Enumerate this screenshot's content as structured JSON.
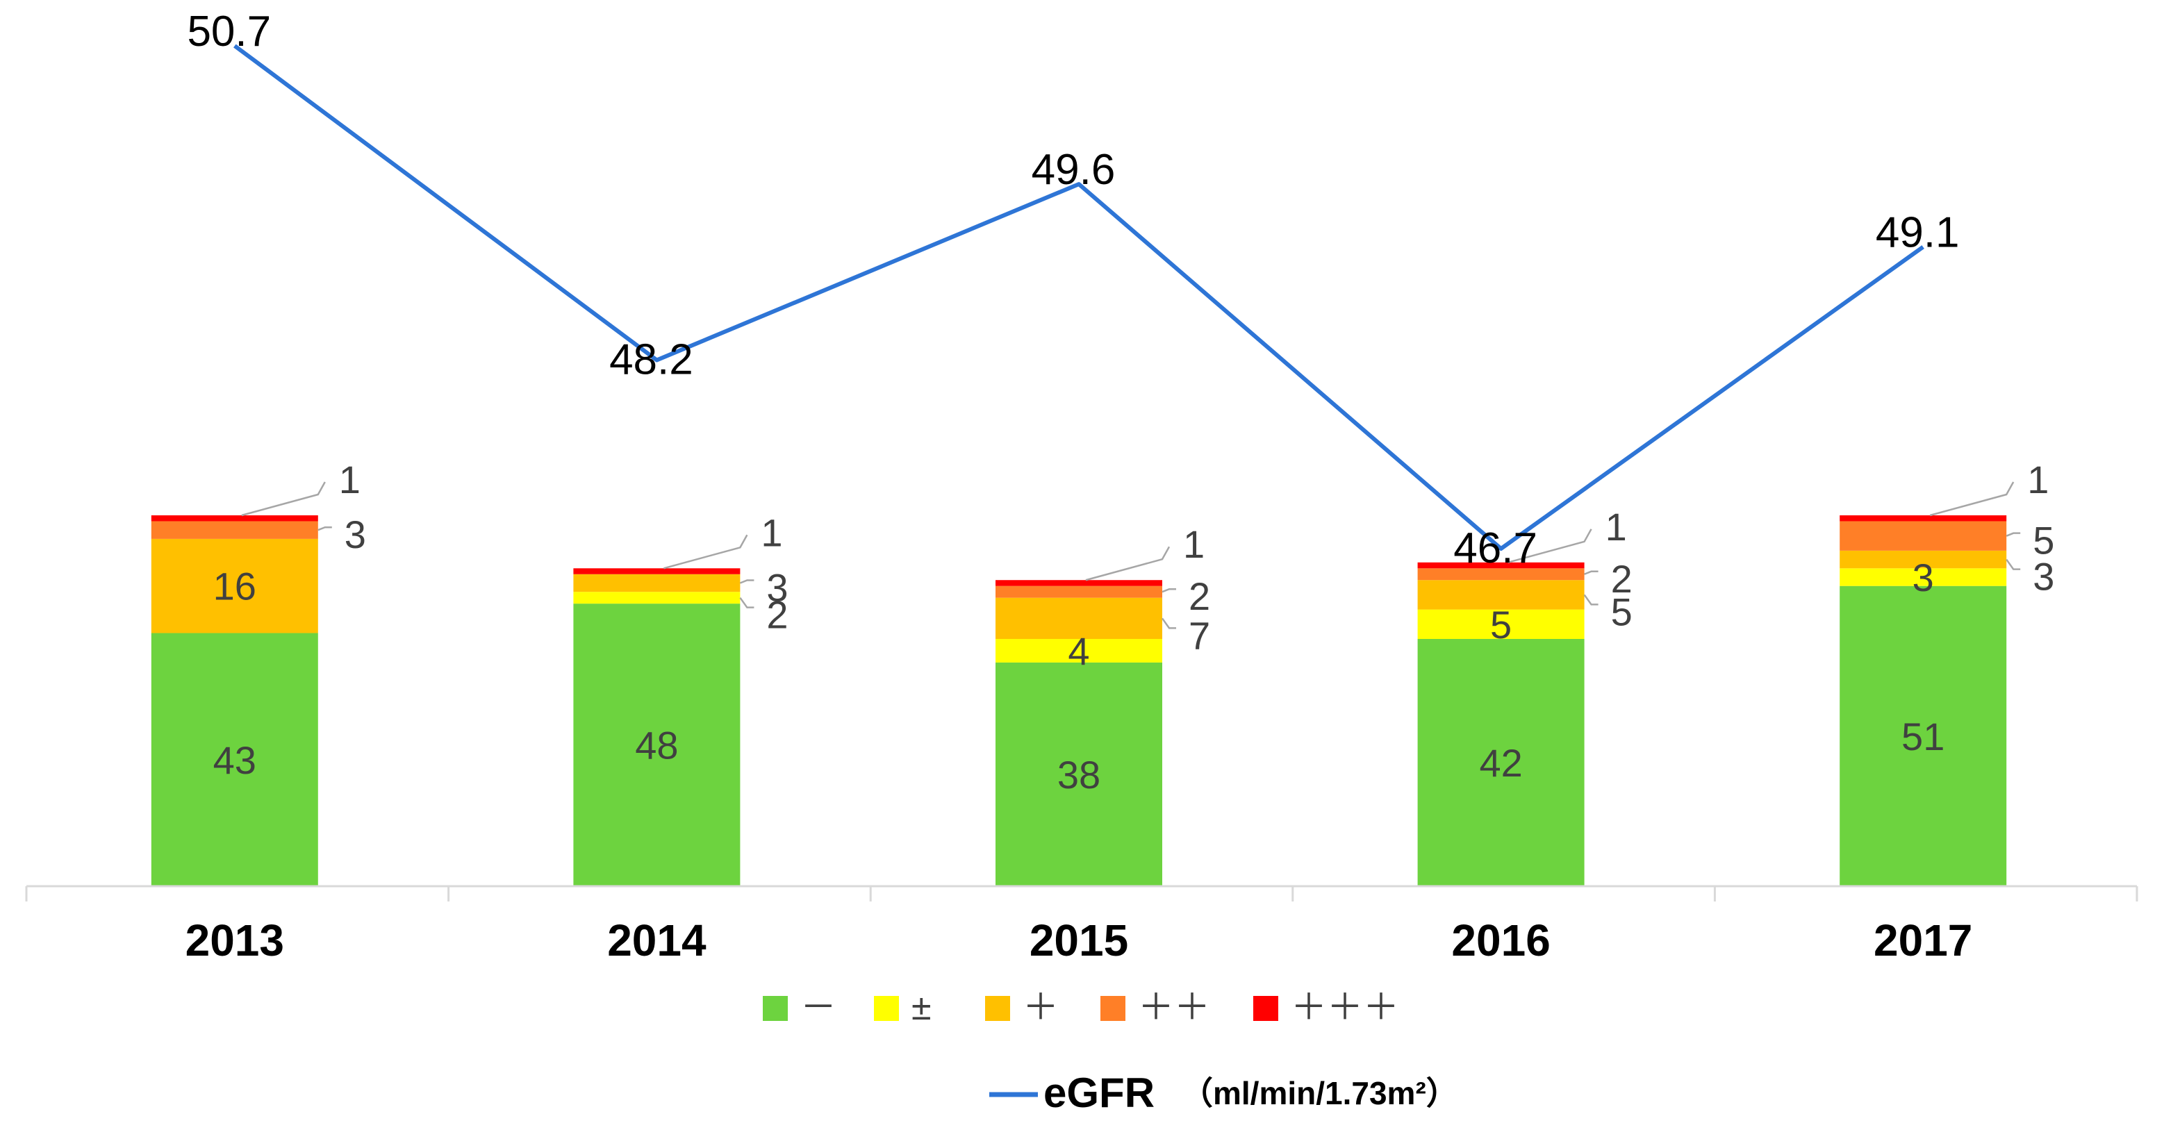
{
  "chart_data": {
    "type": "bar",
    "subtype": "stacked-bar-with-line",
    "categories": [
      "2013",
      "2014",
      "2015",
      "2016",
      "2017"
    ],
    "series": [
      {
        "name": "－",
        "color": "#6dd33f",
        "values": [
          43,
          48,
          38,
          42,
          51
        ]
      },
      {
        "name": "±",
        "color": "#ffff00",
        "values": [
          0,
          2,
          4,
          5,
          3
        ]
      },
      {
        "name": "＋",
        "color": "#ffc000",
        "values": [
          16,
          3,
          7,
          5,
          3
        ]
      },
      {
        "name": "＋＋",
        "color": "#ff7f27",
        "values": [
          3,
          0,
          2,
          2,
          5
        ]
      },
      {
        "name": "＋＋＋",
        "color": "#ff0000",
        "values": [
          1,
          1,
          1,
          1,
          1
        ]
      }
    ],
    "line_series": {
      "name": "eGFR",
      "unit": "（ml/min/1.73m²）",
      "color": "#2e75d6",
      "values": [
        "50.7",
        "48.2",
        "49.6",
        "46.7",
        "49.1"
      ]
    },
    "segment_labels": [
      {
        "bar": 0,
        "series": 0,
        "text": "43"
      },
      {
        "bar": 0,
        "series": 2,
        "text": "16"
      },
      {
        "bar": 1,
        "series": 0,
        "text": "48"
      },
      {
        "bar": 2,
        "series": 0,
        "text": "38"
      },
      {
        "bar": 2,
        "series": 1,
        "text": "4"
      },
      {
        "bar": 3,
        "series": 0,
        "text": "42"
      },
      {
        "bar": 3,
        "series": 1,
        "text": "5"
      },
      {
        "bar": 4,
        "series": 0,
        "text": "51"
      },
      {
        "bar": 4,
        "series": 1,
        "text": "3"
      }
    ],
    "callout_labels": [
      {
        "bar": 0,
        "series": 4,
        "text": "1"
      },
      {
        "bar": 0,
        "series": 3,
        "text": "3"
      },
      {
        "bar": 1,
        "series": 4,
        "text": "1"
      },
      {
        "bar": 1,
        "series": 2,
        "text": "3"
      },
      {
        "bar": 1,
        "series": 1,
        "text": "2"
      },
      {
        "bar": 2,
        "series": 4,
        "text": "1"
      },
      {
        "bar": 2,
        "series": 3,
        "text": "2"
      },
      {
        "bar": 2,
        "series": 2,
        "text": "7"
      },
      {
        "bar": 3,
        "series": 4,
        "text": "1"
      },
      {
        "bar": 3,
        "series": 3,
        "text": "2"
      },
      {
        "bar": 3,
        "series": 2,
        "text": "5"
      },
      {
        "bar": 4,
        "series": 4,
        "text": "1"
      },
      {
        "bar": 4,
        "series": 3,
        "text": "5"
      },
      {
        "bar": 4,
        "series": 2,
        "text": "3"
      }
    ],
    "grid": false,
    "legend_position": "bottom"
  }
}
